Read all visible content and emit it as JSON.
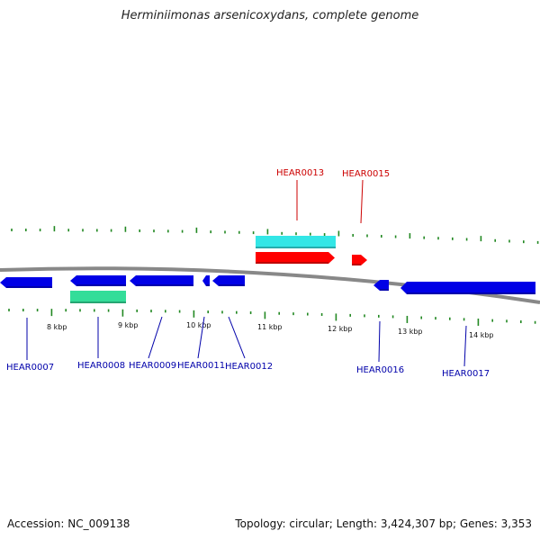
{
  "title": "Herminiimonas arsenicoxydans, complete genome",
  "footer": {
    "accession": "Accession: NC_009138",
    "summary": "Topology: circular; Length: 3,424,307 bp; Genes: 3,353"
  },
  "colors": {
    "forward_gene": "#ff0000",
    "reverse_gene": "#0000e6",
    "forward_rna": "#33e6e6",
    "reverse_rna": "#33dd99",
    "ticks": "#228822",
    "backbone": "#888888",
    "forward_label": "#cc0000",
    "reverse_label": "#0000aa"
  },
  "scale_labels": [
    "8 kbp",
    "9 kbp",
    "10 kbp",
    "11 kbp",
    "12 kbp",
    "13 kbp",
    "14 kbp"
  ],
  "forward_genes": [
    {
      "label": "HEAR0013",
      "kind": "gene"
    },
    {
      "label": "HEAR0013",
      "kind": "rna"
    },
    {
      "label": "HEAR0015",
      "kind": "gene"
    }
  ],
  "reverse_genes": [
    {
      "label": "HEAR0007",
      "kind": "gene"
    },
    {
      "label": "HEAR0008",
      "kind": "gene"
    },
    {
      "label": "HEAR0008",
      "kind": "rna"
    },
    {
      "label": "HEAR0009",
      "kind": "gene"
    },
    {
      "label": "HEAR0011",
      "kind": "gene"
    },
    {
      "label": "HEAR0012",
      "kind": "gene"
    },
    {
      "label": "HEAR0016",
      "kind": "gene"
    },
    {
      "label": "HEAR0017",
      "kind": "gene"
    }
  ]
}
